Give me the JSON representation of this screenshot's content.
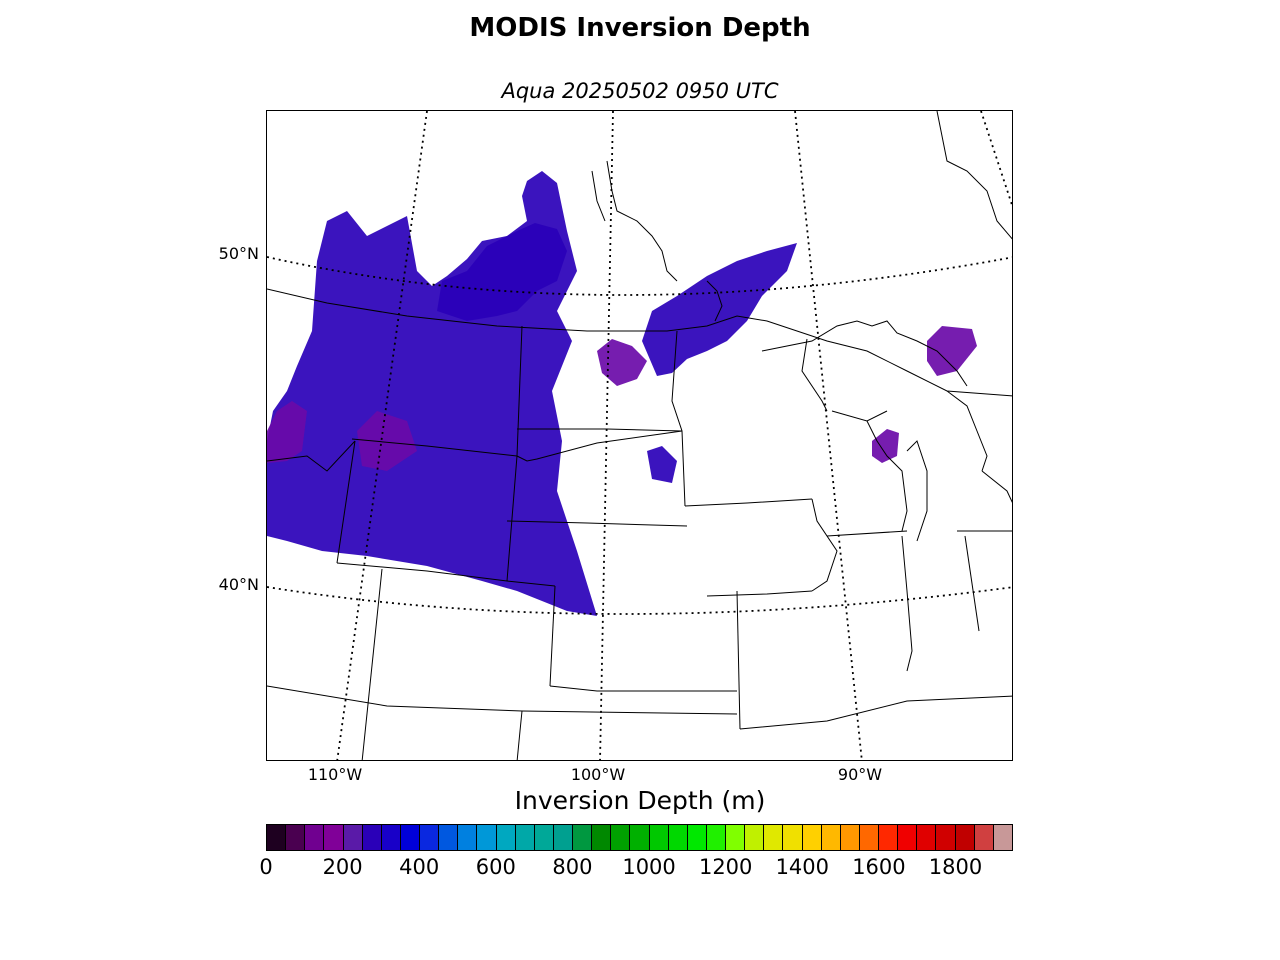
{
  "title": "MODIS Inversion Depth",
  "subtitle": "Aqua 20250502 0950 UTC",
  "map": {
    "projection": "lambert-conformal",
    "region": "northern-great-plains-and-upper-midwest",
    "lat_labels": [
      "50°N",
      "40°N"
    ],
    "lon_labels": [
      "110°W",
      "100°W",
      "90°W"
    ],
    "data_color_dominant": "#2a00b8",
    "data_color_secondary": "#6a0aa8"
  },
  "colorbar": {
    "label": "Inversion Depth (m)",
    "ticks": [
      "0",
      "200",
      "400",
      "600",
      "800",
      "1000",
      "1200",
      "1400",
      "1600",
      "1800"
    ],
    "range": [
      0,
      1950
    ],
    "step": 50,
    "colors": [
      "#1e0020",
      "#4a0050",
      "#700090",
      "#800098",
      "#5a1aa8",
      "#2a00b8",
      "#1800c8",
      "#0000d8",
      "#0a28e0",
      "#0058e0",
      "#0080e0",
      "#0098d8",
      "#00a8c0",
      "#00a8a8",
      "#00a898",
      "#00a090",
      "#009840",
      "#008800",
      "#00a000",
      "#00b000",
      "#00c800",
      "#00d800",
      "#00e800",
      "#20f000",
      "#80ff00",
      "#c0f000",
      "#e0e800",
      "#f0e000",
      "#ffd000",
      "#ffb800",
      "#ff9800",
      "#ff6800",
      "#ff2800",
      "#f00000",
      "#e00000",
      "#d00000",
      "#c00000",
      "#d04040",
      "#c89898"
    ]
  }
}
